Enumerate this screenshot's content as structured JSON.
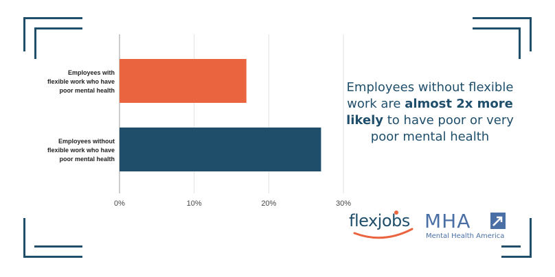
{
  "chart_data": {
    "type": "bar",
    "orientation": "horizontal",
    "categories": [
      "Employees with flexible work who have poor mental health",
      "Employees without flexible work who have poor mental health"
    ],
    "category_lines": [
      [
        "Employees with",
        "flexible work who have",
        "poor mental health"
      ],
      [
        "Employees without",
        "flexible work who have",
        "poor mental health"
      ]
    ],
    "values": [
      17,
      27
    ],
    "bar_colors": [
      "#eb6440",
      "#1f4e6b"
    ],
    "xlim": [
      0,
      30
    ],
    "xticks": [
      0,
      10,
      20,
      30
    ],
    "xtick_labels": [
      "0%",
      "10%",
      "20%",
      "30%"
    ],
    "grid": true,
    "title": "",
    "xlabel": "",
    "ylabel": ""
  },
  "callout": {
    "part1": "Employees without flexible work are ",
    "bold": "almost 2x more likely",
    "part2": " to have poor or very poor mental health"
  },
  "logos": {
    "flexjobs": "flexjobs",
    "mha_letters": "MHA",
    "mha_full": "Mental Health America"
  },
  "colors": {
    "frame": "#1f4e6b",
    "accent_orange": "#eb6440",
    "navy": "#1f4e6b",
    "mha_blue": "#4a6fa5"
  }
}
